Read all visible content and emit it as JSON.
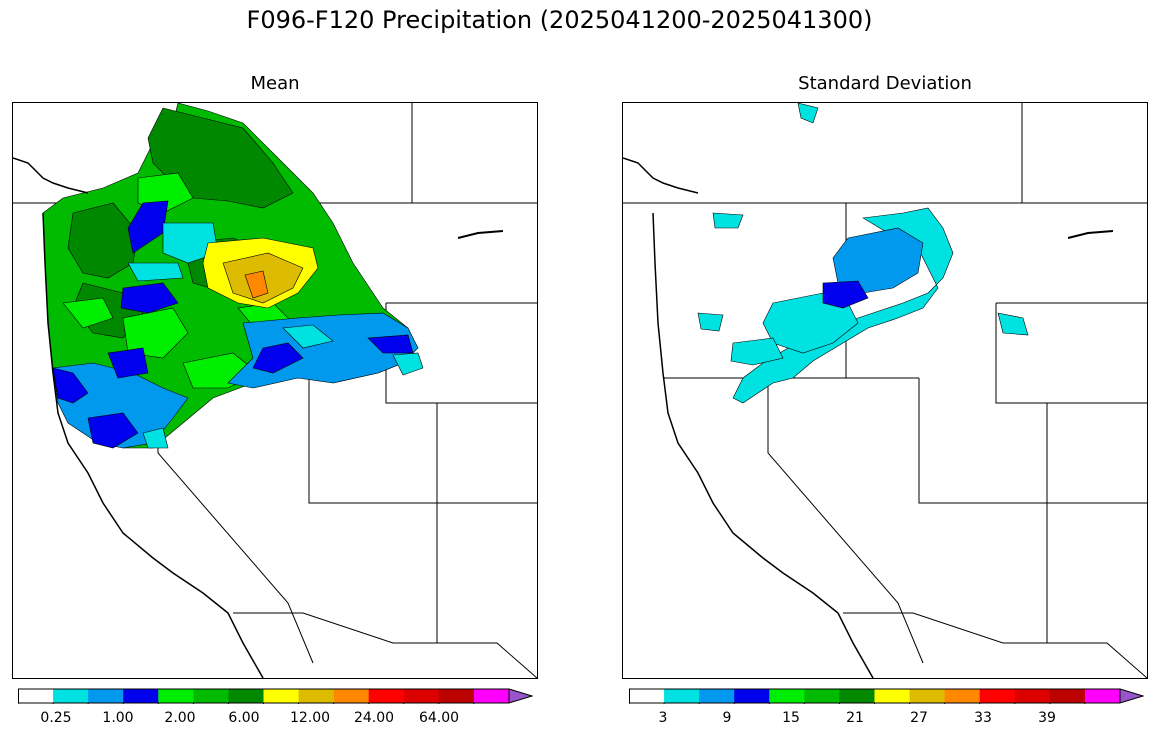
{
  "title": "F096-F120 Precipitation (2025041200-2025041300)",
  "panels": [
    {
      "subtitle": "Mean",
      "colorbar": {
        "colors": [
          "#ffffff",
          "#00e1e1",
          "#0099ee",
          "#0000ee",
          "#00ee00",
          "#00bb00",
          "#008800",
          "#ffff00",
          "#ddbb00",
          "#ff8800",
          "#ff0000",
          "#dd0000",
          "#bb0000",
          "#ff00ff",
          "#9955cc"
        ],
        "tick_labels": [
          "0.25",
          "1.00",
          "2.00",
          "6.00",
          "12.00",
          "24.00",
          "64.00"
        ]
      }
    },
    {
      "subtitle": "Standard Deviation",
      "colorbar": {
        "colors": [
          "#ffffff",
          "#00e1e1",
          "#0099ee",
          "#0000ee",
          "#00ee00",
          "#00bb00",
          "#008800",
          "#ffff00",
          "#ddbb00",
          "#ff8800",
          "#ff0000",
          "#dd0000",
          "#bb0000",
          "#ff00ff",
          "#9955cc"
        ],
        "tick_labels": [
          "3",
          "9",
          "15",
          "21",
          "27",
          "33",
          "39"
        ]
      }
    }
  ]
}
